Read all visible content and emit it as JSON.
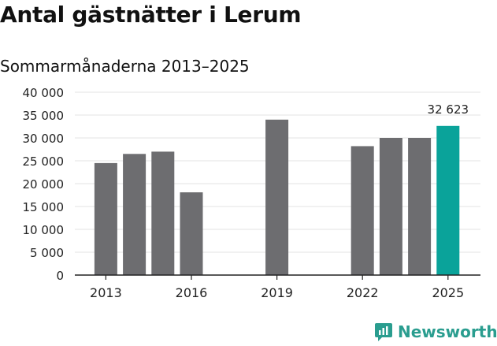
{
  "header": {
    "title": "Antal gästnätter i Lerum",
    "subtitle": "Sommarmånaderna 2013–2025"
  },
  "branding": {
    "name": "Newsworthy"
  },
  "colors": {
    "bar": "#6d6d70",
    "highlight": "#0aa39a",
    "grid": "#e3e3e3",
    "axis": "#222222",
    "brand": "#2a9d8f"
  },
  "chart_data": {
    "type": "bar",
    "categories": [
      "2013",
      "2014",
      "2015",
      "2016",
      "2017",
      "2018",
      "2019",
      "2020",
      "2021",
      "2022",
      "2023",
      "2024",
      "2025"
    ],
    "values": [
      24500,
      26500,
      27000,
      18100,
      null,
      null,
      34000,
      null,
      null,
      28200,
      30000,
      30000,
      32623
    ],
    "x_tick_labels": [
      "2013",
      "2016",
      "2019",
      "2022",
      "2025"
    ],
    "y_tick_labels": [
      "0",
      "5 000",
      "10 000",
      "15 000",
      "20 000",
      "25 000",
      "30 000",
      "35 000",
      "40 000"
    ],
    "ylim": [
      0,
      40000
    ],
    "highlight_category": "2025",
    "data_label": "32 623",
    "grid": true
  }
}
